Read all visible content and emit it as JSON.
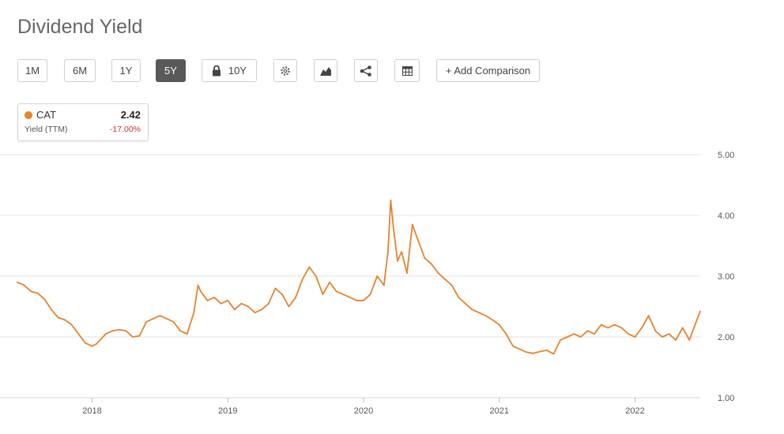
{
  "page": {
    "title": "Dividend Yield"
  },
  "toolbar": {
    "range_buttons": [
      "1M",
      "6M",
      "1Y",
      "5Y"
    ],
    "active_range": "5Y",
    "ten_year_label": "10Y",
    "add_comparison_label": "+ Add Comparison",
    "icons": [
      "lock-icon",
      "gear-icon",
      "chart-type-icon",
      "share-icon",
      "table-icon"
    ]
  },
  "legend": {
    "ticker": "CAT",
    "value": "2.42",
    "metric": "Yield (TTM)",
    "change": "-17.00%",
    "series_color": "#e8822e",
    "change_color": "#d0312d"
  },
  "chart_data": {
    "type": "line",
    "title": "Dividend Yield",
    "xlabel": "",
    "ylabel": "",
    "ylim": [
      1.0,
      5.0
    ],
    "yticks": [
      "1.00",
      "2.00",
      "3.00",
      "4.00",
      "5.00"
    ],
    "xticks": [
      "2018",
      "2019",
      "2020",
      "2021",
      "2022"
    ],
    "xtick_values": [
      2018.0,
      2019.0,
      2020.0,
      2021.0,
      2022.0
    ],
    "grid": true,
    "y_axis_position": "right",
    "series": [
      {
        "name": "CAT",
        "color": "#e8822e",
        "x": [
          2017.45,
          2017.5,
          2017.55,
          2017.6,
          2017.65,
          2017.7,
          2017.75,
          2017.8,
          2017.85,
          2017.9,
          2017.95,
          2018.0,
          2018.03,
          2018.06,
          2018.1,
          2018.15,
          2018.2,
          2018.25,
          2018.3,
          2018.35,
          2018.4,
          2018.45,
          2018.5,
          2018.55,
          2018.6,
          2018.65,
          2018.7,
          2018.75,
          2018.78,
          2018.8,
          2018.85,
          2018.9,
          2018.95,
          2019.0,
          2019.05,
          2019.1,
          2019.15,
          2019.2,
          2019.25,
          2019.3,
          2019.35,
          2019.4,
          2019.45,
          2019.5,
          2019.55,
          2019.6,
          2019.65,
          2019.7,
          2019.75,
          2019.8,
          2019.85,
          2019.9,
          2019.95,
          2020.0,
          2020.05,
          2020.1,
          2020.15,
          2020.18,
          2020.2,
          2020.22,
          2020.25,
          2020.28,
          2020.32,
          2020.36,
          2020.4,
          2020.45,
          2020.5,
          2020.55,
          2020.6,
          2020.65,
          2020.7,
          2020.75,
          2020.8,
          2020.85,
          2020.9,
          2020.95,
          2021.0,
          2021.05,
          2021.1,
          2021.15,
          2021.2,
          2021.25,
          2021.3,
          2021.35,
          2021.4,
          2021.45,
          2021.5,
          2021.55,
          2021.6,
          2021.65,
          2021.7,
          2021.75,
          2021.8,
          2021.85,
          2021.9,
          2021.95,
          2022.0,
          2022.05,
          2022.1,
          2022.15,
          2022.2,
          2022.25,
          2022.3,
          2022.35,
          2022.4,
          2022.45,
          2022.48
        ],
        "values": [
          2.9,
          2.85,
          2.75,
          2.72,
          2.62,
          2.45,
          2.32,
          2.28,
          2.2,
          2.05,
          1.9,
          1.85,
          1.88,
          1.95,
          2.05,
          2.1,
          2.12,
          2.1,
          2.0,
          2.02,
          2.25,
          2.3,
          2.35,
          2.3,
          2.25,
          2.1,
          2.05,
          2.4,
          2.85,
          2.75,
          2.6,
          2.65,
          2.55,
          2.6,
          2.45,
          2.55,
          2.5,
          2.4,
          2.45,
          2.55,
          2.8,
          2.7,
          2.5,
          2.65,
          2.95,
          3.15,
          3.0,
          2.7,
          2.9,
          2.75,
          2.7,
          2.65,
          2.6,
          2.6,
          2.7,
          3.0,
          2.85,
          3.4,
          4.25,
          3.8,
          3.25,
          3.4,
          3.05,
          3.85,
          3.6,
          3.3,
          3.2,
          3.05,
          2.95,
          2.85,
          2.65,
          2.55,
          2.45,
          2.4,
          2.35,
          2.28,
          2.2,
          2.05,
          1.85,
          1.8,
          1.75,
          1.73,
          1.76,
          1.78,
          1.72,
          1.95,
          2.0,
          2.05,
          2.0,
          2.1,
          2.05,
          2.2,
          2.15,
          2.2,
          2.15,
          2.05,
          2.0,
          2.15,
          2.35,
          2.1,
          2.0,
          2.05,
          1.95,
          2.15,
          1.95,
          2.25,
          2.42
        ]
      }
    ]
  }
}
